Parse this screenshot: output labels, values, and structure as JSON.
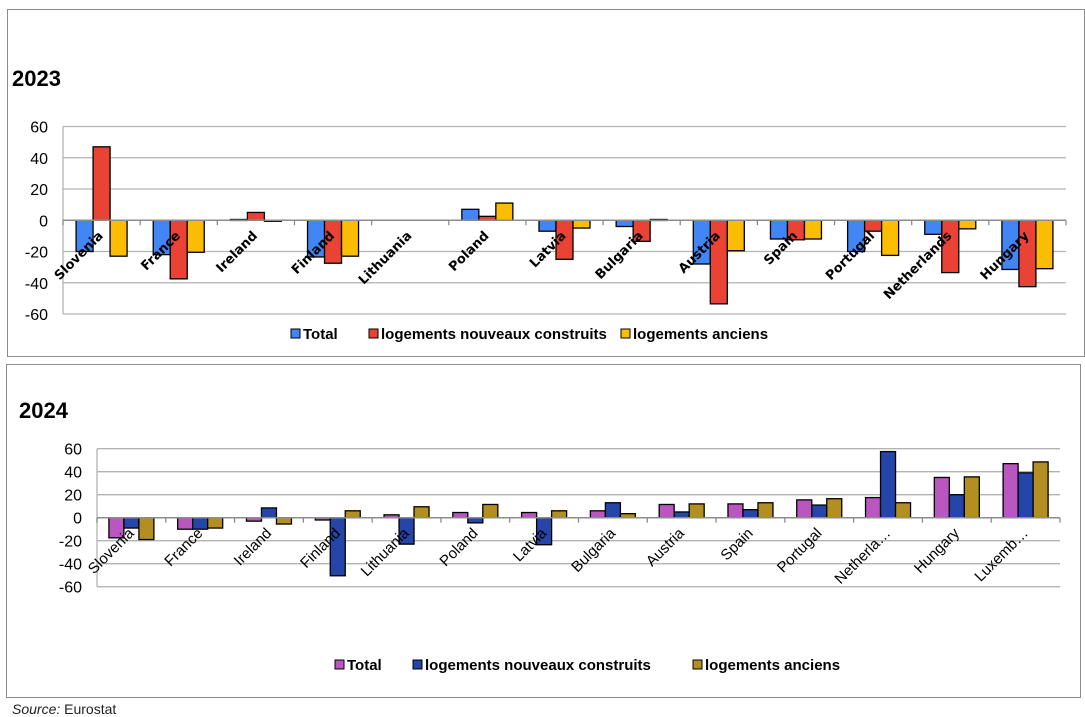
{
  "footer": {
    "source_label": "Source:",
    "source_value": "Eurostat"
  },
  "chart_data": [
    {
      "id": "2023",
      "type": "bar",
      "title": "2023",
      "xlabel": "",
      "ylabel": "",
      "ylim": [
        -60,
        60
      ],
      "yticks": [
        60,
        40,
        20,
        0,
        -20,
        -40,
        -60
      ],
      "grid": true,
      "legend_position": "bottom",
      "categories": [
        "Slovenia",
        "France",
        "Ireland",
        "Finland",
        "Lithuania",
        "Poland",
        "Latvia",
        "Bulgaria",
        "Austria",
        "Spain",
        "Portugal",
        "Netherlands",
        "Hungary"
      ],
      "series": [
        {
          "name": "Total",
          "color": "#4285F4",
          "values": [
            -20,
            -22,
            0.5,
            -23.5,
            0,
            7,
            -7,
            -4,
            -28,
            -12,
            -20,
            -9,
            -31.5
          ]
        },
        {
          "name": "logements nouveaux construits",
          "color": "#EA4335",
          "values": [
            47,
            -37.5,
            5,
            -27.5,
            0,
            2.5,
            -25,
            -13.5,
            -53.5,
            -12.5,
            -7,
            -33.5,
            -42.5
          ]
        },
        {
          "name": "logements anciens",
          "color": "#FBBC04",
          "values": [
            -23,
            -20.5,
            -0.5,
            -23,
            0,
            11,
            -5,
            0.5,
            -19.5,
            -12,
            -22.5,
            -5.5,
            -31
          ]
        }
      ]
    },
    {
      "id": "2024",
      "type": "bar",
      "title": "2024",
      "xlabel": "",
      "ylabel": "",
      "ylim": [
        -60,
        60
      ],
      "yticks": [
        60,
        40,
        20,
        0,
        -20,
        -40,
        -60
      ],
      "grid": true,
      "legend_position": "bottom",
      "categories": [
        "Slovenia",
        "France",
        "Ireland",
        "Finland",
        "Lithuania",
        "Poland",
        "Latvia",
        "Bulgaria",
        "Austria",
        "Spain",
        "Portugal",
        "Netherla…",
        "Hungary",
        "Luxemb…"
      ],
      "series": [
        {
          "name": "Total",
          "color": "#B956BF",
          "values": [
            -17.5,
            -10,
            -3,
            -2,
            2.5,
            4.5,
            4.5,
            6,
            11.5,
            12,
            15.5,
            17.5,
            35,
            47
          ]
        },
        {
          "name": "logements nouveaux construits",
          "color": "#2545A8",
          "values": [
            -9,
            -10,
            8.5,
            -50.5,
            -23,
            -4.5,
            -23.5,
            13,
            5,
            7,
            11,
            57.5,
            20,
            39
          ]
        },
        {
          "name": "logements anciens",
          "color": "#B38F22",
          "values": [
            -19,
            -9,
            -5.5,
            6,
            9.5,
            11.5,
            6,
            3.5,
            12,
            13,
            16.5,
            13,
            35.5,
            48.5
          ]
        }
      ]
    }
  ]
}
